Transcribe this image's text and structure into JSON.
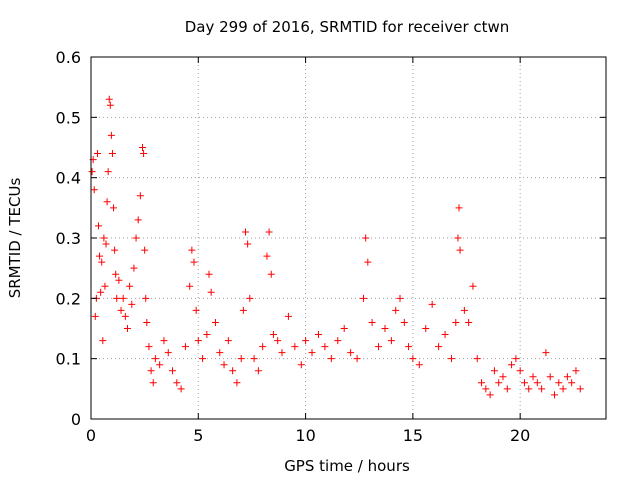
{
  "chart_data": {
    "type": "scatter",
    "title": "Day 299 of 2016, SRMTID for receiver ctwn",
    "xlabel": "GPS time / hours",
    "ylabel": "SRMTID / TECUs",
    "xlim": [
      0,
      24
    ],
    "ylim": [
      0,
      0.6
    ],
    "xticks": [
      0,
      5,
      10,
      15,
      20
    ],
    "xtick_labels": [
      "0",
      "5",
      "10",
      "15",
      "20"
    ],
    "yticks": [
      0,
      0.1,
      0.2,
      0.3,
      0.4,
      0.5,
      0.6
    ],
    "ytick_labels": [
      "0",
      "0.1",
      "0.2",
      "0.3",
      "0.4",
      "0.5",
      "0.6"
    ],
    "grid": true,
    "marker": "plus",
    "marker_color": "#ff0000",
    "series": [
      {
        "name": "SRMTID",
        "points": [
          [
            0.05,
            0.41
          ],
          [
            0.1,
            0.43
          ],
          [
            0.15,
            0.38
          ],
          [
            0.2,
            0.17
          ],
          [
            0.25,
            0.2
          ],
          [
            0.3,
            0.44
          ],
          [
            0.35,
            0.32
          ],
          [
            0.4,
            0.27
          ],
          [
            0.45,
            0.21
          ],
          [
            0.5,
            0.26
          ],
          [
            0.55,
            0.13
          ],
          [
            0.6,
            0.3
          ],
          [
            0.65,
            0.22
          ],
          [
            0.7,
            0.29
          ],
          [
            0.75,
            0.36
          ],
          [
            0.8,
            0.41
          ],
          [
            0.85,
            0.53
          ],
          [
            0.9,
            0.52
          ],
          [
            0.95,
            0.47
          ],
          [
            1.0,
            0.44
          ],
          [
            1.05,
            0.35
          ],
          [
            1.1,
            0.28
          ],
          [
            1.15,
            0.24
          ],
          [
            1.2,
            0.2
          ],
          [
            1.3,
            0.23
          ],
          [
            1.4,
            0.18
          ],
          [
            1.5,
            0.2
          ],
          [
            1.6,
            0.17
          ],
          [
            1.7,
            0.15
          ],
          [
            1.8,
            0.22
          ],
          [
            1.9,
            0.19
          ],
          [
            2.0,
            0.25
          ],
          [
            2.1,
            0.3
          ],
          [
            2.2,
            0.33
          ],
          [
            2.3,
            0.37
          ],
          [
            2.4,
            0.45
          ],
          [
            2.45,
            0.44
          ],
          [
            2.5,
            0.28
          ],
          [
            2.55,
            0.2
          ],
          [
            2.6,
            0.16
          ],
          [
            2.7,
            0.12
          ],
          [
            2.8,
            0.08
          ],
          [
            2.9,
            0.06
          ],
          [
            3.0,
            0.1
          ],
          [
            3.2,
            0.09
          ],
          [
            3.4,
            0.13
          ],
          [
            3.6,
            0.11
          ],
          [
            3.8,
            0.08
          ],
          [
            4.0,
            0.06
          ],
          [
            4.2,
            0.05
          ],
          [
            4.4,
            0.12
          ],
          [
            4.6,
            0.22
          ],
          [
            4.7,
            0.28
          ],
          [
            4.8,
            0.26
          ],
          [
            4.9,
            0.18
          ],
          [
            5.0,
            0.13
          ],
          [
            5.2,
            0.1
          ],
          [
            5.4,
            0.14
          ],
          [
            5.5,
            0.24
          ],
          [
            5.6,
            0.21
          ],
          [
            5.8,
            0.16
          ],
          [
            6.0,
            0.11
          ],
          [
            6.2,
            0.09
          ],
          [
            6.4,
            0.13
          ],
          [
            6.6,
            0.08
          ],
          [
            6.8,
            0.06
          ],
          [
            7.0,
            0.1
          ],
          [
            7.1,
            0.18
          ],
          [
            7.2,
            0.31
          ],
          [
            7.3,
            0.29
          ],
          [
            7.4,
            0.2
          ],
          [
            7.6,
            0.1
          ],
          [
            7.8,
            0.08
          ],
          [
            8.0,
            0.12
          ],
          [
            8.2,
            0.27
          ],
          [
            8.3,
            0.31
          ],
          [
            8.4,
            0.24
          ],
          [
            8.5,
            0.14
          ],
          [
            8.7,
            0.13
          ],
          [
            8.9,
            0.11
          ],
          [
            9.2,
            0.17
          ],
          [
            9.5,
            0.12
          ],
          [
            9.8,
            0.09
          ],
          [
            10.0,
            0.13
          ],
          [
            10.3,
            0.11
          ],
          [
            10.6,
            0.14
          ],
          [
            10.9,
            0.12
          ],
          [
            11.2,
            0.1
          ],
          [
            11.5,
            0.13
          ],
          [
            11.8,
            0.15
          ],
          [
            12.1,
            0.11
          ],
          [
            12.4,
            0.1
          ],
          [
            12.7,
            0.2
          ],
          [
            12.8,
            0.3
          ],
          [
            12.9,
            0.26
          ],
          [
            13.1,
            0.16
          ],
          [
            13.4,
            0.12
          ],
          [
            13.7,
            0.15
          ],
          [
            14.0,
            0.13
          ],
          [
            14.2,
            0.18
          ],
          [
            14.4,
            0.2
          ],
          [
            14.6,
            0.16
          ],
          [
            14.8,
            0.12
          ],
          [
            15.0,
            0.1
          ],
          [
            15.3,
            0.09
          ],
          [
            15.6,
            0.15
          ],
          [
            15.9,
            0.19
          ],
          [
            16.2,
            0.12
          ],
          [
            16.5,
            0.14
          ],
          [
            16.8,
            0.1
          ],
          [
            17.0,
            0.16
          ],
          [
            17.1,
            0.3
          ],
          [
            17.15,
            0.35
          ],
          [
            17.2,
            0.28
          ],
          [
            17.4,
            0.18
          ],
          [
            17.6,
            0.16
          ],
          [
            17.8,
            0.22
          ],
          [
            18.0,
            0.1
          ],
          [
            18.2,
            0.06
          ],
          [
            18.4,
            0.05
          ],
          [
            18.6,
            0.04
          ],
          [
            18.8,
            0.08
          ],
          [
            19.0,
            0.06
          ],
          [
            19.2,
            0.07
          ],
          [
            19.4,
            0.05
          ],
          [
            19.6,
            0.09
          ],
          [
            19.8,
            0.1
          ],
          [
            20.0,
            0.08
          ],
          [
            20.2,
            0.06
          ],
          [
            20.4,
            0.05
          ],
          [
            20.6,
            0.07
          ],
          [
            20.8,
            0.06
          ],
          [
            21.0,
            0.05
          ],
          [
            21.2,
            0.11
          ],
          [
            21.4,
            0.07
          ],
          [
            21.6,
            0.04
          ],
          [
            21.8,
            0.06
          ],
          [
            22.0,
            0.05
          ],
          [
            22.2,
            0.07
          ],
          [
            22.4,
            0.06
          ],
          [
            22.6,
            0.08
          ],
          [
            22.8,
            0.05
          ]
        ]
      }
    ]
  }
}
